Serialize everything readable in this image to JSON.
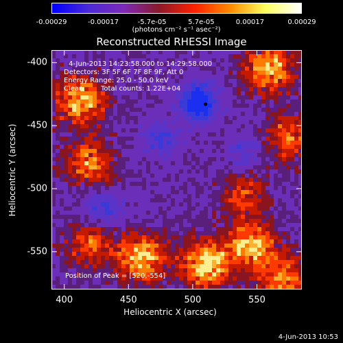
{
  "colorbar": {
    "tick_labels": [
      "-0.00029",
      "-0.00017",
      "-5.7e-05",
      "5.7e-05",
      "0.00017",
      "0.00029"
    ],
    "tick_values": [
      -0.00029,
      -0.00017,
      -5.7e-05,
      5.7e-05,
      0.00017,
      0.00029
    ],
    "range": [
      -0.00029,
      0.00029
    ],
    "units_label": "(photons cm⁻² s⁻¹ asec⁻²)",
    "colors": [
      "#0000ff",
      "#4a2ad8",
      "#7d2ab8",
      "#8a1a2a",
      "#ff2000",
      "#ff8a00",
      "#ffff60",
      "#ffffff"
    ]
  },
  "chart_data": {
    "type": "heatmap",
    "title": "Reconstructed RHESSI Image",
    "xlabel": "Heliocentric X (arcsec)",
    "ylabel": "Heliocentric Y (arcsec)",
    "xlim": [
      390,
      585
    ],
    "ylim": [
      -580,
      -390
    ],
    "x_ticks": [
      400,
      450,
      500,
      550
    ],
    "y_ticks": [
      -400,
      -450,
      -500,
      -550
    ],
    "annotations": [
      "4-Jun-2013 14:23:58.000 to 14:29:58.000",
      "Detectors: 3F 5F 6F 7F 8F 9F, Att 0",
      "Energy Range: 25.0 - 50.0 keV",
      "Clean",
      "Total counts: 1.22E+04"
    ],
    "peak_label": "Position of Peak = [520,-554]",
    "peak_position": [
      520,
      -554
    ],
    "marker_position": [
      510,
      -433
    ],
    "hot_regions": [
      {
        "x": 560,
        "y": -405,
        "intensity": 0.9
      },
      {
        "x": 412,
        "y": -430,
        "intensity": 0.85
      },
      {
        "x": 420,
        "y": -480,
        "intensity": 0.7
      },
      {
        "x": 575,
        "y": -460,
        "intensity": 0.55
      },
      {
        "x": 540,
        "y": -505,
        "intensity": 0.45
      },
      {
        "x": 460,
        "y": -555,
        "intensity": 0.9
      },
      {
        "x": 510,
        "y": -560,
        "intensity": 1.0
      },
      {
        "x": 545,
        "y": -545,
        "intensity": 0.85
      },
      {
        "x": 570,
        "y": -570,
        "intensity": 0.7
      },
      {
        "x": 420,
        "y": -545,
        "intensity": 0.55
      }
    ],
    "cold_regions": [
      {
        "x": 505,
        "y": -432,
        "intensity": -1.0
      },
      {
        "x": 475,
        "y": -460,
        "intensity": -0.5
      },
      {
        "x": 430,
        "y": -515,
        "intensity": -0.5
      },
      {
        "x": 540,
        "y": -470,
        "intensity": -0.35
      }
    ]
  },
  "footer": {
    "timestamp": "4-Jun-2013 10:53"
  }
}
